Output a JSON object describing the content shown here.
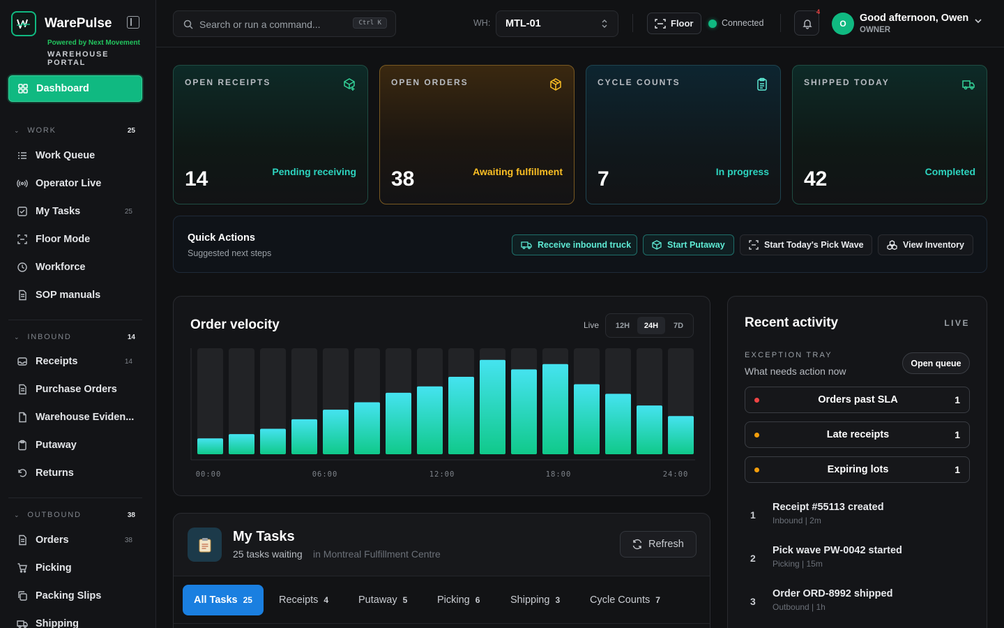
{
  "brand": {
    "name": "WarePulse",
    "powered_by": "Powered by Next Movement",
    "portal": "WAREHOUSE PORTAL",
    "accent": "#10b981"
  },
  "sidebar": {
    "dashboard": "Dashboard",
    "sections": [
      {
        "label": "WORK",
        "count": "25"
      },
      {
        "label": "INBOUND",
        "count": "14"
      },
      {
        "label": "OUTBOUND",
        "count": "38"
      }
    ],
    "work_items": [
      {
        "label": "Work Queue",
        "icon": "list-icon",
        "count": ""
      },
      {
        "label": "Operator Live",
        "icon": "broadcast-icon",
        "count": ""
      },
      {
        "label": "My Tasks",
        "icon": "checkbox-icon",
        "count": "25"
      },
      {
        "label": "Floor Mode",
        "icon": "scan-icon",
        "count": ""
      },
      {
        "label": "Workforce",
        "icon": "clock-icon",
        "count": ""
      },
      {
        "label": "SOP manuals",
        "icon": "document-icon",
        "count": ""
      }
    ],
    "inbound_items": [
      {
        "label": "Receipts",
        "icon": "inbox-icon",
        "count": "14"
      },
      {
        "label": "Purchase Orders",
        "icon": "document-icon",
        "count": ""
      },
      {
        "label": "Warehouse Eviden...",
        "icon": "file-icon",
        "count": ""
      },
      {
        "label": "Putaway",
        "icon": "clipboard-icon",
        "count": ""
      },
      {
        "label": "Returns",
        "icon": "undo-icon",
        "count": ""
      }
    ],
    "outbound_items": [
      {
        "label": "Orders",
        "icon": "document-icon",
        "count": "38"
      },
      {
        "label": "Picking",
        "icon": "cart-icon",
        "count": ""
      },
      {
        "label": "Packing Slips",
        "icon": "copy-icon",
        "count": ""
      },
      {
        "label": "Shipping",
        "icon": "truck-icon",
        "count": ""
      }
    ]
  },
  "header": {
    "search_placeholder": "Search or run a command...",
    "shortcut": "Ctrl K",
    "wh_label": "WH:",
    "wh_value": "MTL-01",
    "floor_label": "Floor",
    "connection": "Connected",
    "notification_badge": "4",
    "avatar_initial": "O",
    "greeting": "Good afternoon, Owen",
    "role": "OWNER"
  },
  "kpis": [
    {
      "label": "OPEN RECEIPTS",
      "value": "14",
      "sub": "Pending receiving",
      "icon": "package-plus-icon"
    },
    {
      "label": "OPEN ORDERS",
      "value": "38",
      "sub": "Awaiting fulfillment",
      "icon": "package-icon"
    },
    {
      "label": "CYCLE COUNTS",
      "value": "7",
      "sub": "In progress",
      "icon": "clipboard-list-icon"
    },
    {
      "label": "SHIPPED TODAY",
      "value": "42",
      "sub": "Completed",
      "icon": "truck-icon"
    }
  ],
  "quick_actions": {
    "title": "Quick Actions",
    "subtitle": "Suggested next steps",
    "buttons": [
      {
        "label": "Receive inbound truck",
        "icon": "truck-icon"
      },
      {
        "label": "Start Putaway",
        "icon": "package-icon"
      },
      {
        "label": "Start Today's Pick Wave",
        "icon": "scan-icon"
      },
      {
        "label": "View Inventory",
        "icon": "boxes-icon"
      }
    ]
  },
  "velocity": {
    "title": "Order velocity",
    "live_label": "Live",
    "ranges": [
      "12H",
      "24H",
      "7D"
    ],
    "selected_range": "24H"
  },
  "chart_data": {
    "type": "bar",
    "title": "Order velocity",
    "x_ticks": [
      "00:00",
      "06:00",
      "12:00",
      "18:00",
      "24:00"
    ],
    "bar_count": 16,
    "values": [
      0.15,
      0.19,
      0.24,
      0.33,
      0.42,
      0.49,
      0.58,
      0.64,
      0.73,
      0.89,
      0.8,
      0.85,
      0.66,
      0.57,
      0.46,
      0.36
    ],
    "ylim": [
      0,
      1
    ],
    "grid": false,
    "colors": {
      "bar_top": "#45e3f0",
      "bar_bottom": "#10c98a",
      "track": "#222326"
    }
  },
  "tasks": {
    "title": "My Tasks",
    "subtitle": "25 tasks waiting",
    "location": "in Montreal Fulfillment Centre",
    "refresh_label": "Refresh",
    "tabs": [
      {
        "label": "All Tasks",
        "count": "25"
      },
      {
        "label": "Receipts",
        "count": "4"
      },
      {
        "label": "Putaway",
        "count": "5"
      },
      {
        "label": "Picking",
        "count": "6"
      },
      {
        "label": "Shipping",
        "count": "3"
      },
      {
        "label": "Cycle Counts",
        "count": "7"
      }
    ]
  },
  "activity": {
    "title": "Recent activity",
    "live": "LIVE",
    "exception_title": "EXCEPTION TRAY",
    "exception_sub": "What needs action now",
    "open_queue": "Open queue",
    "exceptions": [
      {
        "label": "Orders past SLA",
        "count": "1",
        "color": "#ef4444"
      },
      {
        "label": "Late receipts",
        "count": "1",
        "color": "#f59e0b"
      },
      {
        "label": "Expiring lots",
        "count": "1",
        "color": "#f59e0b"
      }
    ],
    "events": [
      {
        "num": "1",
        "title": "Receipt #55113 created",
        "meta": "Inbound | 2m"
      },
      {
        "num": "2",
        "title": "Pick wave PW-0042 started",
        "meta": "Picking | 15m"
      },
      {
        "num": "3",
        "title": "Order ORD-8992 shipped",
        "meta": "Outbound | 1h"
      }
    ]
  }
}
